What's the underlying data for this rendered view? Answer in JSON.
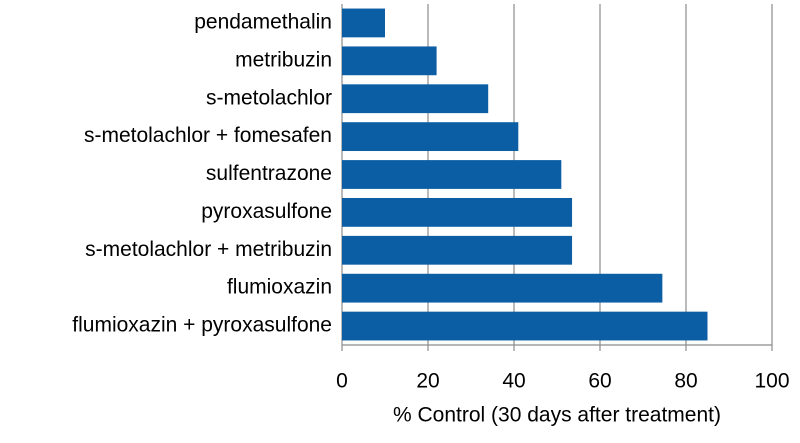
{
  "chart_data": {
    "type": "bar",
    "orientation": "horizontal",
    "x_label": "% Control (30 days after treatment)",
    "categories": [
      "pendamethalin",
      "metribuzin",
      "s-metolachlor",
      "s-metolachlor + fomesafen",
      "sulfentrazone",
      "pyroxasulfone",
      "s-metolachlor + metribuzin",
      "flumioxazin",
      "flumioxazin + pyroxasulfone"
    ],
    "values": [
      10,
      22,
      34,
      41,
      51,
      53.5,
      53.5,
      74.5,
      85
    ],
    "color": "#0b5ea4",
    "xlim": [
      0,
      100
    ],
    "xticks": [
      0,
      20,
      40,
      60,
      80,
      100
    ],
    "grid": true
  }
}
